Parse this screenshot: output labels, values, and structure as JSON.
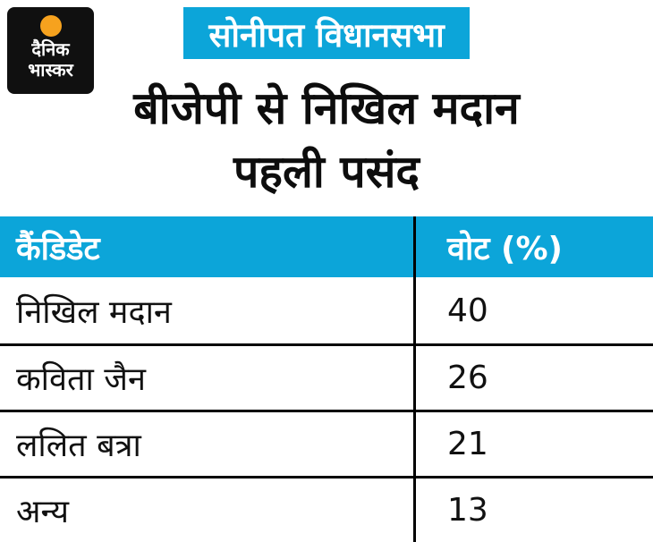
{
  "colors": {
    "accent": "#0ca5d9",
    "orange": "#f6a21e",
    "logo_bg": "#101010"
  },
  "logo": {
    "line1": "दैनिक",
    "line2": "भास्कर"
  },
  "badge": {
    "label": "सोनीपत विधानसभा"
  },
  "title": {
    "line1": "बीजेपी से निखिल मदान",
    "line2": "पहली पसंद"
  },
  "table": {
    "headers": [
      "कैंडिडेट",
      "वोट (%)"
    ],
    "rows": [
      {
        "candidate": "निखिल मदान",
        "vote": "40"
      },
      {
        "candidate": "कविता जैन",
        "vote": "26"
      },
      {
        "candidate": "ललित बत्रा",
        "vote": "21"
      },
      {
        "candidate": "अन्य",
        "vote": "13"
      }
    ]
  },
  "chart_data": {
    "type": "table",
    "title": "बीजेपी से निखिल मदान पहली पसंद",
    "subtitle": "सोनीपत विधानसभा",
    "columns": [
      "कैंडिडेट",
      "वोट (%)"
    ],
    "rows": [
      [
        "निखिल मदान",
        40
      ],
      [
        "कविता जैन",
        26
      ],
      [
        "ललित बत्रा",
        21
      ],
      [
        "अन्य",
        13
      ]
    ]
  }
}
